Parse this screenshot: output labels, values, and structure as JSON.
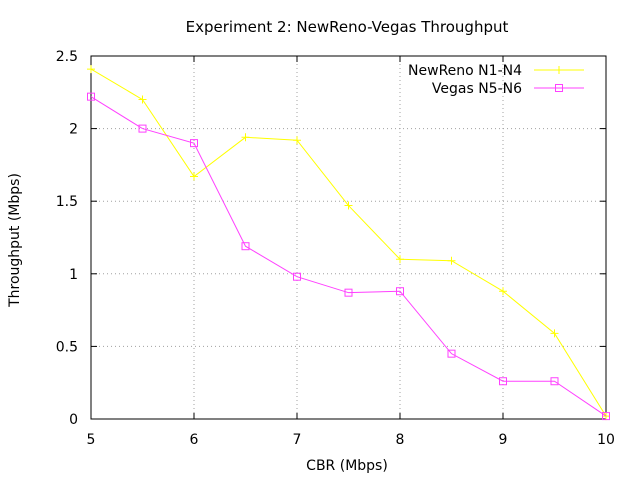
{
  "chart_data": {
    "type": "line",
    "title": "Experiment 2: NewReno-Vegas Throughput",
    "xlabel": "CBR (Mbps)",
    "ylabel": "Throughput (Mbps)",
    "xlim": [
      5,
      10
    ],
    "ylim": [
      0,
      2.5
    ],
    "x_ticks": [
      "5",
      "6",
      "7",
      "8",
      "9",
      "10"
    ],
    "y_ticks": [
      "0",
      "0.5",
      "1",
      "1.5",
      "2",
      "2.5"
    ],
    "grid": true,
    "legend_position": "top-right",
    "x": [
      5,
      5.5,
      6,
      6.5,
      7,
      7.5,
      8,
      8.5,
      9,
      9.5,
      10
    ],
    "series": [
      {
        "name": "NewReno N1-N4",
        "color": "#ffff00",
        "marker": "plus",
        "values": [
          2.41,
          2.2,
          1.67,
          1.94,
          1.92,
          1.47,
          1.1,
          1.09,
          0.88,
          0.59,
          0.02
        ]
      },
      {
        "name": "Vegas N5-N6",
        "color": "#ff40ff",
        "marker": "square",
        "values": [
          2.22,
          2.0,
          1.9,
          1.19,
          0.98,
          0.87,
          0.88,
          0.45,
          0.26,
          0.26,
          0.02
        ]
      }
    ]
  }
}
